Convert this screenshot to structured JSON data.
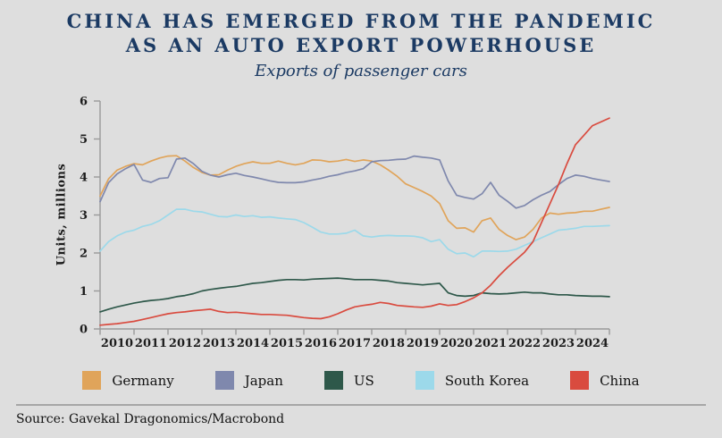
{
  "header": {
    "title_line1": "CHINA HAS EMERGED FROM THE PANDEMIC",
    "title_line2": "AS AN AUTO EXPORT POWERHOUSE",
    "subtitle": "Exports of passenger cars"
  },
  "footer": {
    "source": "Source: Gavekal Dragonomics/Macrobond"
  },
  "colors": {
    "background": "#dedede",
    "title": "#1b3a63",
    "axis": "#9a9a9a",
    "tick_text": "#1d1d1d"
  },
  "chart_data": {
    "type": "line",
    "title": "Exports of passenger cars",
    "xlabel": "",
    "ylabel": "Units, millions",
    "ylim": [
      0,
      6
    ],
    "yticks": [
      0,
      1,
      2,
      3,
      4,
      5,
      6
    ],
    "x_start": 2010,
    "x_step": 0.25,
    "x_end": 2025,
    "xtick_years": [
      2010,
      2011,
      2012,
      2013,
      2014,
      2015,
      2016,
      2017,
      2018,
      2019,
      2020,
      2021,
      2022,
      2023,
      2024
    ],
    "grid": false,
    "legend_position": "bottom",
    "series": [
      {
        "name": "Germany",
        "color": "#e0a45a",
        "values": [
          3.5,
          3.95,
          4.18,
          4.28,
          4.35,
          4.32,
          4.42,
          4.5,
          4.55,
          4.56,
          4.42,
          4.25,
          4.12,
          4.05,
          4.06,
          4.18,
          4.28,
          4.35,
          4.4,
          4.36,
          4.36,
          4.42,
          4.36,
          4.32,
          4.36,
          4.45,
          4.44,
          4.4,
          4.42,
          4.46,
          4.41,
          4.45,
          4.42,
          4.32,
          4.18,
          4.02,
          3.82,
          3.72,
          3.62,
          3.5,
          3.3,
          2.85,
          2.65,
          2.66,
          2.55,
          2.85,
          2.92,
          2.62,
          2.46,
          2.35,
          2.42,
          2.62,
          2.92,
          3.05,
          3.02,
          3.05,
          3.06,
          3.1,
          3.1,
          3.15,
          3.2
        ]
      },
      {
        "name": "Japan",
        "color": "#7f88ad",
        "values": [
          3.35,
          3.85,
          4.08,
          4.22,
          4.33,
          3.92,
          3.86,
          3.96,
          3.98,
          4.47,
          4.5,
          4.35,
          4.15,
          4.05,
          4.0,
          4.06,
          4.1,
          4.04,
          4.0,
          3.95,
          3.9,
          3.86,
          3.85,
          3.85,
          3.87,
          3.92,
          3.96,
          4.02,
          4.06,
          4.12,
          4.16,
          4.22,
          4.4,
          4.43,
          4.44,
          4.46,
          4.47,
          4.55,
          4.52,
          4.5,
          4.45,
          3.9,
          3.52,
          3.46,
          3.42,
          3.56,
          3.86,
          3.52,
          3.36,
          3.18,
          3.25,
          3.4,
          3.52,
          3.62,
          3.8,
          3.96,
          4.05,
          4.02,
          3.96,
          3.92,
          3.88
        ]
      },
      {
        "name": "US",
        "color": "#2e584a",
        "values": [
          0.45,
          0.52,
          0.58,
          0.63,
          0.68,
          0.72,
          0.75,
          0.77,
          0.8,
          0.85,
          0.88,
          0.93,
          1.0,
          1.04,
          1.07,
          1.1,
          1.12,
          1.16,
          1.2,
          1.22,
          1.25,
          1.28,
          1.3,
          1.3,
          1.29,
          1.31,
          1.32,
          1.33,
          1.34,
          1.32,
          1.3,
          1.3,
          1.3,
          1.28,
          1.26,
          1.22,
          1.2,
          1.18,
          1.16,
          1.18,
          1.2,
          0.95,
          0.88,
          0.86,
          0.88,
          0.95,
          0.93,
          0.92,
          0.93,
          0.95,
          0.97,
          0.95,
          0.95,
          0.92,
          0.9,
          0.9,
          0.88,
          0.87,
          0.86,
          0.86,
          0.85
        ]
      },
      {
        "name": "South Korea",
        "color": "#9cd9ea",
        "values": [
          2.05,
          2.3,
          2.45,
          2.55,
          2.6,
          2.7,
          2.75,
          2.85,
          3.0,
          3.15,
          3.15,
          3.1,
          3.08,
          3.02,
          2.96,
          2.95,
          3.0,
          2.96,
          2.98,
          2.94,
          2.95,
          2.92,
          2.9,
          2.88,
          2.8,
          2.68,
          2.55,
          2.5,
          2.5,
          2.52,
          2.6,
          2.45,
          2.42,
          2.45,
          2.46,
          2.45,
          2.45,
          2.44,
          2.4,
          2.3,
          2.35,
          2.1,
          1.98,
          2.0,
          1.9,
          2.05,
          2.05,
          2.04,
          2.05,
          2.1,
          2.2,
          2.3,
          2.4,
          2.5,
          2.6,
          2.62,
          2.65,
          2.7,
          2.7,
          2.71,
          2.72
        ]
      },
      {
        "name": "China",
        "color": "#d94b3f",
        "values": [
          0.1,
          0.12,
          0.14,
          0.17,
          0.2,
          0.25,
          0.3,
          0.35,
          0.4,
          0.43,
          0.45,
          0.48,
          0.5,
          0.52,
          0.46,
          0.43,
          0.44,
          0.42,
          0.4,
          0.38,
          0.38,
          0.37,
          0.36,
          0.33,
          0.3,
          0.28,
          0.27,
          0.32,
          0.4,
          0.5,
          0.58,
          0.62,
          0.65,
          0.7,
          0.67,
          0.62,
          0.6,
          0.58,
          0.57,
          0.6,
          0.66,
          0.62,
          0.64,
          0.72,
          0.82,
          0.95,
          1.15,
          1.4,
          1.62,
          1.82,
          2.02,
          2.3,
          2.8,
          3.3,
          3.8,
          4.35,
          4.85,
          5.1,
          5.35,
          5.45,
          5.55
        ]
      }
    ]
  }
}
